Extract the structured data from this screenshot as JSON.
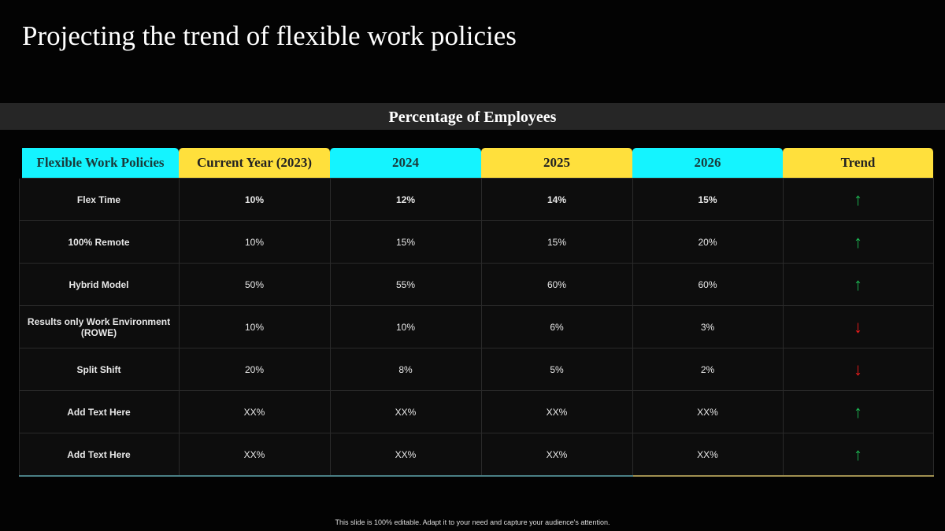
{
  "title": "Projecting the trend of flexible work policies",
  "band": "Percentage of Employees",
  "headers": [
    "Flexible Work Policies",
    "Current Year (2023)",
    "2024",
    "2025",
    "2026",
    "Trend"
  ],
  "colors": {
    "cyan": "#14f4ff",
    "yellow": "#ffe03c",
    "up": "#1db954",
    "down": "#ee1c1c"
  },
  "rows": [
    {
      "name": "Flex Time",
      "values": [
        "10%",
        "12%",
        "14%",
        "15%"
      ],
      "trend": "up"
    },
    {
      "name": "100% Remote",
      "values": [
        "10%",
        "15%",
        "15%",
        "20%"
      ],
      "trend": "up"
    },
    {
      "name": "Hybrid Model",
      "values": [
        "50%",
        "55%",
        "60%",
        "60%"
      ],
      "trend": "up"
    },
    {
      "name": "Results  only Work Environment (ROWE)",
      "values": [
        "10%",
        "10%",
        "6%",
        "3%"
      ],
      "trend": "down"
    },
    {
      "name": "Split Shift",
      "values": [
        "20%",
        "8%",
        "5%",
        "2%"
      ],
      "trend": "down"
    },
    {
      "name": "Add Text Here",
      "values": [
        "XX%",
        "XX%",
        "XX%",
        "XX%"
      ],
      "trend": "up"
    },
    {
      "name": "Add Text Here",
      "values": [
        "XX%",
        "XX%",
        "XX%",
        "XX%"
      ],
      "trend": "up"
    }
  ],
  "footer": "This slide is 100% editable. Adapt it to your need and capture your audience's attention."
}
